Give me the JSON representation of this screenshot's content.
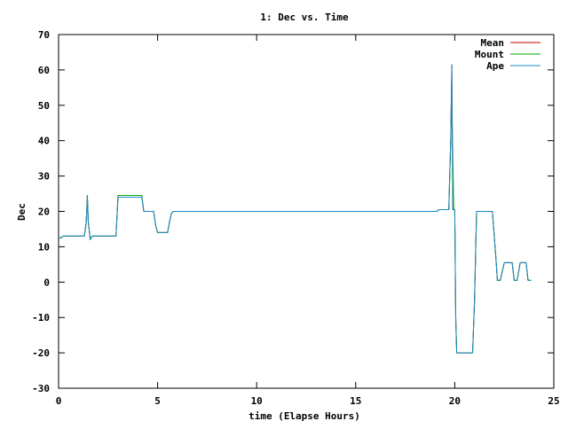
{
  "chart_data": {
    "type": "line",
    "title": "1: Dec vs. Time",
    "xlabel": "time (Elapse Hours)",
    "ylabel": "Dec",
    "xlim": [
      0,
      25
    ],
    "ylim": [
      -30,
      70
    ],
    "xticks": [
      0,
      5,
      10,
      15,
      20,
      25
    ],
    "yticks": [
      -30,
      -20,
      -10,
      0,
      10,
      20,
      30,
      40,
      50,
      60,
      70
    ],
    "grid": false,
    "legend_position": "top-right",
    "series": [
      {
        "name": "Mean",
        "color": "#cc0000",
        "points": [
          [
            0.0,
            12.5
          ],
          [
            0.15,
            12.5
          ],
          [
            0.2,
            13.0
          ],
          [
            1.3,
            13.0
          ],
          [
            1.4,
            17.0
          ],
          [
            1.45,
            24.5
          ],
          [
            1.5,
            17.0
          ],
          [
            1.6,
            12.0
          ],
          [
            1.7,
            13.0
          ],
          [
            2.9,
            13.0
          ],
          [
            3.0,
            24.5
          ],
          [
            4.2,
            24.5
          ],
          [
            4.3,
            20.0
          ],
          [
            4.8,
            20.0
          ],
          [
            4.9,
            16.0
          ],
          [
            5.0,
            14.0
          ],
          [
            5.5,
            14.0
          ],
          [
            5.6,
            17.0
          ],
          [
            5.7,
            19.5
          ],
          [
            5.8,
            20.0
          ],
          [
            19.1,
            20.0
          ],
          [
            19.2,
            20.5
          ],
          [
            19.7,
            20.5
          ],
          [
            19.8,
            41.0
          ],
          [
            19.85,
            61.5
          ],
          [
            19.9,
            20.5
          ],
          [
            20.0,
            20.5
          ],
          [
            20.05,
            -10.0
          ],
          [
            20.1,
            -20.0
          ],
          [
            20.9,
            -20.0
          ],
          [
            21.0,
            -5.0
          ],
          [
            21.1,
            20.0
          ],
          [
            21.9,
            20.0
          ],
          [
            22.1,
            5.0
          ],
          [
            22.15,
            0.5
          ],
          [
            22.3,
            0.5
          ],
          [
            22.5,
            5.5
          ],
          [
            22.9,
            5.5
          ],
          [
            23.0,
            0.5
          ],
          [
            23.15,
            0.5
          ],
          [
            23.3,
            5.5
          ],
          [
            23.6,
            5.5
          ],
          [
            23.7,
            0.5
          ],
          [
            23.85,
            0.5
          ]
        ]
      },
      {
        "name": "Mount",
        "color": "#00aa00",
        "points": [
          [
            0.0,
            12.5
          ],
          [
            0.15,
            12.5
          ],
          [
            0.2,
            13.0
          ],
          [
            1.3,
            13.0
          ],
          [
            1.4,
            17.0
          ],
          [
            1.45,
            24.5
          ],
          [
            1.5,
            17.0
          ],
          [
            1.6,
            12.0
          ],
          [
            1.7,
            13.0
          ],
          [
            2.9,
            13.0
          ],
          [
            3.0,
            24.5
          ],
          [
            4.2,
            24.5
          ],
          [
            4.3,
            20.0
          ],
          [
            4.8,
            20.0
          ],
          [
            4.9,
            16.0
          ],
          [
            5.0,
            14.0
          ],
          [
            5.5,
            14.0
          ],
          [
            5.6,
            17.0
          ],
          [
            5.7,
            19.5
          ],
          [
            5.8,
            20.0
          ],
          [
            19.1,
            20.0
          ],
          [
            19.2,
            20.5
          ],
          [
            19.7,
            20.5
          ],
          [
            19.75,
            30.0
          ],
          [
            19.85,
            51.0
          ],
          [
            19.95,
            20.5
          ],
          [
            20.0,
            20.5
          ],
          [
            20.05,
            -10.0
          ],
          [
            20.1,
            -20.0
          ],
          [
            20.9,
            -20.0
          ],
          [
            21.0,
            -5.0
          ],
          [
            21.1,
            20.0
          ],
          [
            21.9,
            20.0
          ],
          [
            22.1,
            5.0
          ],
          [
            22.15,
            0.5
          ],
          [
            22.3,
            0.5
          ],
          [
            22.5,
            5.5
          ],
          [
            22.9,
            5.5
          ],
          [
            23.0,
            0.5
          ],
          [
            23.15,
            0.5
          ],
          [
            23.3,
            5.5
          ],
          [
            23.6,
            5.5
          ],
          [
            23.7,
            0.5
          ],
          [
            23.85,
            0.5
          ]
        ]
      },
      {
        "name": "Ape",
        "color": "#1e88c8",
        "points": [
          [
            0.0,
            12.5
          ],
          [
            0.15,
            12.5
          ],
          [
            0.2,
            13.0
          ],
          [
            1.3,
            13.0
          ],
          [
            1.4,
            17.0
          ],
          [
            1.45,
            24.5
          ],
          [
            1.5,
            17.0
          ],
          [
            1.6,
            12.0
          ],
          [
            1.7,
            13.0
          ],
          [
            2.9,
            13.0
          ],
          [
            3.0,
            24.0
          ],
          [
            4.2,
            24.0
          ],
          [
            4.3,
            20.0
          ],
          [
            4.8,
            20.0
          ],
          [
            4.9,
            16.0
          ],
          [
            5.0,
            14.0
          ],
          [
            5.5,
            14.0
          ],
          [
            5.6,
            17.0
          ],
          [
            5.7,
            19.5
          ],
          [
            5.8,
            20.0
          ],
          [
            19.1,
            20.0
          ],
          [
            19.2,
            20.5
          ],
          [
            19.7,
            20.5
          ],
          [
            19.8,
            41.0
          ],
          [
            19.85,
            61.5
          ],
          [
            19.9,
            20.5
          ],
          [
            20.0,
            20.5
          ],
          [
            20.05,
            -10.0
          ],
          [
            20.1,
            -20.0
          ],
          [
            20.9,
            -20.0
          ],
          [
            21.0,
            -5.0
          ],
          [
            21.1,
            20.0
          ],
          [
            21.9,
            20.0
          ],
          [
            22.1,
            5.0
          ],
          [
            22.15,
            0.5
          ],
          [
            22.3,
            0.5
          ],
          [
            22.5,
            5.5
          ],
          [
            22.9,
            5.5
          ],
          [
            23.0,
            0.5
          ],
          [
            23.15,
            0.5
          ],
          [
            23.3,
            5.5
          ],
          [
            23.6,
            5.5
          ],
          [
            23.7,
            0.5
          ],
          [
            23.85,
            0.5
          ]
        ]
      }
    ]
  }
}
